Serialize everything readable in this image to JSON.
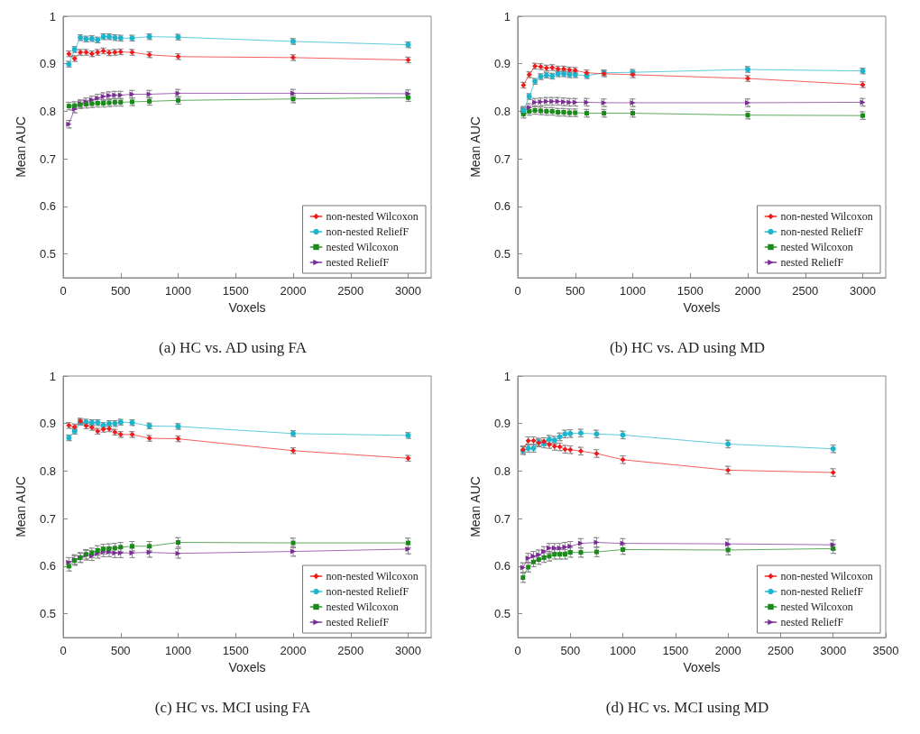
{
  "chart_data": [
    {
      "type": "line",
      "title": "(a) HC vs. AD using FA",
      "xlabel": "Voxels",
      "ylabel": "Mean AUC",
      "x": [
        50,
        100,
        150,
        200,
        250,
        300,
        350,
        400,
        450,
        500,
        600,
        750,
        1000,
        2000,
        3000
      ],
      "xlim": [
        0,
        3200
      ],
      "xticks": [
        0,
        500,
        1000,
        1500,
        2000,
        2500,
        3000
      ],
      "ylim": [
        0.45,
        1
      ],
      "yticks": [
        0.5,
        0.6,
        0.7,
        0.8,
        0.9,
        1
      ],
      "grid": false,
      "legend": "bottom right",
      "series": [
        {
          "name": "non-nested Wilcoxon",
          "color": "#ee1c1c",
          "marker": "diamond",
          "values": [
            0.921,
            0.911,
            0.924,
            0.924,
            0.921,
            0.924,
            0.927,
            0.923,
            0.924,
            0.925,
            0.924,
            0.919,
            0.915,
            0.913,
            0.908
          ],
          "errors": [
            0.006,
            0.006,
            0.006,
            0.006,
            0.006,
            0.006,
            0.006,
            0.006,
            0.006,
            0.006,
            0.006,
            0.006,
            0.006,
            0.006,
            0.006
          ]
        },
        {
          "name": "non-nested ReliefF",
          "color": "#1eb4cc",
          "marker": "circle",
          "values": [
            0.899,
            0.93,
            0.955,
            0.952,
            0.953,
            0.95,
            0.957,
            0.957,
            0.955,
            0.954,
            0.954,
            0.957,
            0.956,
            0.947,
            0.94
          ],
          "errors": [
            0.006,
            0.006,
            0.006,
            0.006,
            0.006,
            0.006,
            0.006,
            0.006,
            0.006,
            0.006,
            0.006,
            0.006,
            0.006,
            0.006,
            0.006
          ]
        },
        {
          "name": "nested Wilcoxon",
          "color": "#1a8a1a",
          "marker": "square",
          "values": [
            0.811,
            0.812,
            0.814,
            0.815,
            0.816,
            0.817,
            0.817,
            0.818,
            0.819,
            0.819,
            0.82,
            0.821,
            0.823,
            0.826,
            0.829
          ],
          "errors": [
            0.008,
            0.008,
            0.008,
            0.008,
            0.008,
            0.008,
            0.008,
            0.008,
            0.008,
            0.008,
            0.008,
            0.008,
            0.008,
            0.008,
            0.008
          ]
        },
        {
          "name": "nested ReliefF",
          "color": "#7b2a96",
          "marker": "triangle",
          "values": [
            0.773,
            0.805,
            0.816,
            0.82,
            0.824,
            0.828,
            0.831,
            0.833,
            0.834,
            0.834,
            0.836,
            0.836,
            0.838,
            0.838,
            0.837
          ],
          "errors": [
            0.008,
            0.008,
            0.008,
            0.008,
            0.008,
            0.008,
            0.008,
            0.008,
            0.008,
            0.008,
            0.008,
            0.008,
            0.008,
            0.008,
            0.008
          ]
        }
      ]
    },
    {
      "type": "line",
      "title": "(b) HC vs. AD using MD",
      "xlabel": "Voxels",
      "ylabel": "Mean AUC",
      "x": [
        50,
        100,
        150,
        200,
        250,
        300,
        350,
        400,
        450,
        500,
        600,
        750,
        1000,
        2000,
        3000
      ],
      "xlim": [
        0,
        3200
      ],
      "xticks": [
        0,
        500,
        1000,
        1500,
        2000,
        2500,
        3000
      ],
      "ylim": [
        0.45,
        1
      ],
      "yticks": [
        0.5,
        0.6,
        0.7,
        0.8,
        0.9,
        1
      ],
      "grid": false,
      "legend": "bottom right",
      "series": [
        {
          "name": "non-nested Wilcoxon",
          "color": "#ee1c1c",
          "marker": "diamond",
          "values": [
            0.855,
            0.877,
            0.895,
            0.894,
            0.891,
            0.892,
            0.889,
            0.889,
            0.887,
            0.886,
            0.881,
            0.879,
            0.877,
            0.869,
            0.856
          ],
          "errors": [
            0.006,
            0.006,
            0.006,
            0.006,
            0.006,
            0.006,
            0.006,
            0.006,
            0.006,
            0.006,
            0.006,
            0.006,
            0.006,
            0.006,
            0.006
          ]
        },
        {
          "name": "non-nested ReliefF",
          "color": "#1eb4cc",
          "marker": "circle",
          "values": [
            0.802,
            0.831,
            0.863,
            0.873,
            0.876,
            0.874,
            0.879,
            0.879,
            0.877,
            0.877,
            0.875,
            0.881,
            0.882,
            0.888,
            0.885
          ],
          "errors": [
            0.006,
            0.006,
            0.006,
            0.006,
            0.006,
            0.006,
            0.006,
            0.006,
            0.006,
            0.006,
            0.006,
            0.006,
            0.006,
            0.006,
            0.006
          ]
        },
        {
          "name": "nested Wilcoxon",
          "color": "#1a8a1a",
          "marker": "square",
          "values": [
            0.794,
            0.8,
            0.802,
            0.801,
            0.8,
            0.8,
            0.798,
            0.798,
            0.797,
            0.797,
            0.796,
            0.796,
            0.796,
            0.792,
            0.791
          ],
          "errors": [
            0.008,
            0.008,
            0.008,
            0.008,
            0.008,
            0.008,
            0.008,
            0.008,
            0.008,
            0.008,
            0.008,
            0.008,
            0.008,
            0.008,
            0.008
          ]
        },
        {
          "name": "nested ReliefF",
          "color": "#7b2a96",
          "marker": "triangle",
          "values": [
            0.802,
            0.808,
            0.819,
            0.82,
            0.821,
            0.821,
            0.821,
            0.82,
            0.819,
            0.819,
            0.819,
            0.818,
            0.818,
            0.818,
            0.819
          ],
          "errors": [
            0.008,
            0.008,
            0.008,
            0.008,
            0.008,
            0.008,
            0.008,
            0.008,
            0.008,
            0.008,
            0.008,
            0.008,
            0.008,
            0.008,
            0.008
          ]
        }
      ]
    },
    {
      "type": "line",
      "title": "(c) HC vs. MCI using FA",
      "xlabel": "Voxels",
      "ylabel": "Mean AUC",
      "x": [
        50,
        100,
        150,
        200,
        250,
        300,
        350,
        400,
        450,
        500,
        600,
        750,
        1000,
        2000,
        3000
      ],
      "xlim": [
        0,
        3200
      ],
      "xticks": [
        0,
        500,
        1000,
        1500,
        2000,
        2500,
        3000
      ],
      "ylim": [
        0.45,
        1
      ],
      "yticks": [
        0.5,
        0.6,
        0.7,
        0.8,
        0.9,
        1
      ],
      "grid": false,
      "legend": "bottom right",
      "series": [
        {
          "name": "non-nested Wilcoxon",
          "color": "#ee1c1c",
          "marker": "diamond",
          "values": [
            0.896,
            0.893,
            0.905,
            0.895,
            0.892,
            0.884,
            0.888,
            0.889,
            0.882,
            0.877,
            0.877,
            0.869,
            0.868,
            0.843,
            0.827
          ],
          "errors": [
            0.006,
            0.006,
            0.006,
            0.006,
            0.006,
            0.006,
            0.006,
            0.006,
            0.006,
            0.006,
            0.006,
            0.006,
            0.006,
            0.006,
            0.006
          ]
        },
        {
          "name": "non-nested ReliefF",
          "color": "#1eb4cc",
          "marker": "circle",
          "values": [
            0.87,
            0.884,
            0.903,
            0.903,
            0.902,
            0.902,
            0.896,
            0.9,
            0.9,
            0.903,
            0.902,
            0.895,
            0.894,
            0.879,
            0.875
          ],
          "errors": [
            0.006,
            0.006,
            0.006,
            0.006,
            0.006,
            0.006,
            0.006,
            0.006,
            0.006,
            0.006,
            0.006,
            0.006,
            0.006,
            0.006,
            0.006
          ]
        },
        {
          "name": "nested Wilcoxon",
          "color": "#1a8a1a",
          "marker": "square",
          "values": [
            0.6,
            0.612,
            0.618,
            0.625,
            0.628,
            0.633,
            0.636,
            0.637,
            0.638,
            0.64,
            0.642,
            0.642,
            0.65,
            0.649,
            0.649
          ],
          "errors": [
            0.01,
            0.01,
            0.01,
            0.01,
            0.01,
            0.01,
            0.01,
            0.01,
            0.01,
            0.01,
            0.01,
            0.01,
            0.01,
            0.01,
            0.01
          ]
        },
        {
          "name": "nested ReliefF",
          "color": "#7b2a96",
          "marker": "triangle",
          "values": [
            0.608,
            0.614,
            0.618,
            0.623,
            0.622,
            0.627,
            0.63,
            0.63,
            0.628,
            0.628,
            0.628,
            0.629,
            0.627,
            0.631,
            0.636
          ],
          "errors": [
            0.01,
            0.01,
            0.01,
            0.01,
            0.01,
            0.01,
            0.01,
            0.01,
            0.01,
            0.01,
            0.01,
            0.01,
            0.01,
            0.01,
            0.01
          ]
        }
      ]
    },
    {
      "type": "line",
      "title": "(d) HC vs. MCI using MD",
      "xlabel": "Voxels",
      "ylabel": "Mean AUC",
      "x": [
        50,
        100,
        150,
        200,
        250,
        300,
        350,
        400,
        450,
        500,
        600,
        750,
        1000,
        2000,
        3000
      ],
      "xlim": [
        0,
        3500
      ],
      "xticks": [
        0,
        500,
        1000,
        1500,
        2000,
        2500,
        3000,
        3500
      ],
      "ylim": [
        0.45,
        1
      ],
      "yticks": [
        0.5,
        0.6,
        0.7,
        0.8,
        0.9,
        1
      ],
      "grid": false,
      "legend": "bottom right",
      "series": [
        {
          "name": "non-nested Wilcoxon",
          "color": "#ee1c1c",
          "marker": "diamond",
          "values": [
            0.845,
            0.864,
            0.864,
            0.859,
            0.862,
            0.856,
            0.852,
            0.851,
            0.846,
            0.845,
            0.842,
            0.837,
            0.824,
            0.802,
            0.797
          ],
          "errors": [
            0.008,
            0.008,
            0.008,
            0.008,
            0.008,
            0.008,
            0.008,
            0.008,
            0.008,
            0.008,
            0.008,
            0.008,
            0.008,
            0.008,
            0.008
          ]
        },
        {
          "name": "non-nested ReliefF",
          "color": "#1eb4cc",
          "marker": "circle",
          "values": [
            0.843,
            0.848,
            0.848,
            0.861,
            0.857,
            0.867,
            0.865,
            0.872,
            0.878,
            0.879,
            0.88,
            0.878,
            0.876,
            0.857,
            0.847
          ],
          "errors": [
            0.008,
            0.008,
            0.008,
            0.008,
            0.008,
            0.008,
            0.008,
            0.008,
            0.008,
            0.008,
            0.008,
            0.008,
            0.008,
            0.008,
            0.008
          ]
        },
        {
          "name": "nested Wilcoxon",
          "color": "#1a8a1a",
          "marker": "square",
          "values": [
            0.576,
            0.598,
            0.609,
            0.614,
            0.618,
            0.621,
            0.625,
            0.625,
            0.625,
            0.629,
            0.629,
            0.63,
            0.635,
            0.634,
            0.637
          ],
          "errors": [
            0.01,
            0.01,
            0.01,
            0.01,
            0.01,
            0.01,
            0.01,
            0.01,
            0.01,
            0.01,
            0.01,
            0.01,
            0.01,
            0.01,
            0.01
          ]
        },
        {
          "name": "nested ReliefF",
          "color": "#7b2a96",
          "marker": "triangle",
          "values": [
            0.597,
            0.617,
            0.621,
            0.624,
            0.631,
            0.638,
            0.638,
            0.638,
            0.64,
            0.642,
            0.648,
            0.65,
            0.648,
            0.647,
            0.645
          ],
          "errors": [
            0.01,
            0.01,
            0.01,
            0.01,
            0.01,
            0.01,
            0.01,
            0.01,
            0.01,
            0.01,
            0.01,
            0.01,
            0.01,
            0.01,
            0.01
          ]
        }
      ]
    }
  ]
}
